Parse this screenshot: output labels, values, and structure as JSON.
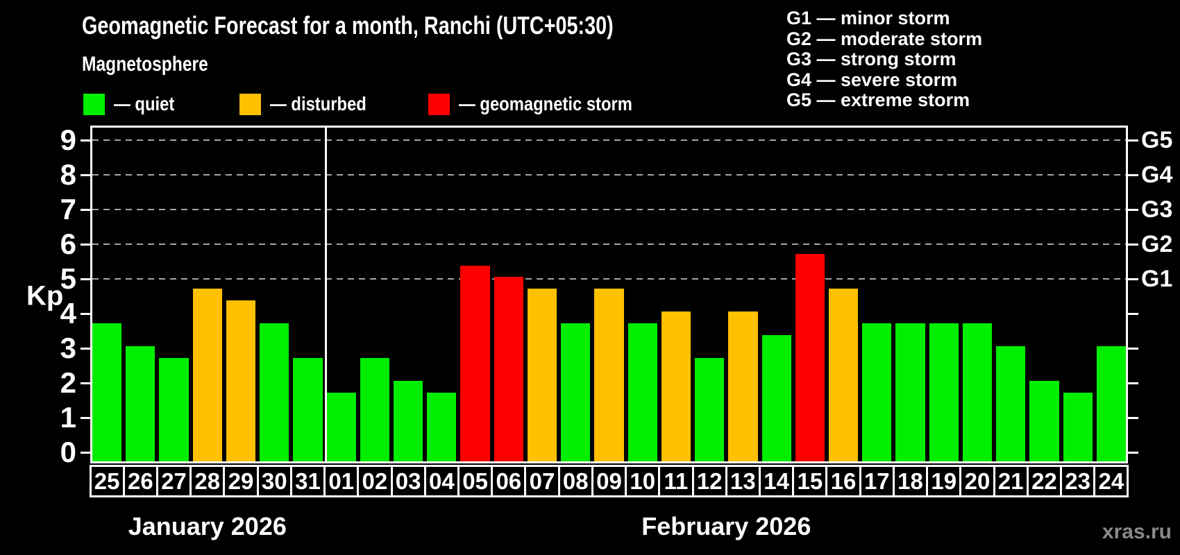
{
  "header": {
    "title": "Geomagnetic Forecast for a month, Ranchi (UTC+05:30)",
    "subtitle": "Magnetosphere",
    "legend": [
      {
        "level": "quiet",
        "label": "— quiet"
      },
      {
        "level": "disturbed",
        "label": "— disturbed"
      },
      {
        "level": "storm",
        "label": "— geomagnetic storm"
      }
    ],
    "g_scale_legend": [
      "G1 — minor storm",
      "G2 — moderate storm",
      "G3 — strong storm",
      "G4 — severe storm",
      "G5 — extreme storm"
    ]
  },
  "chart_data": {
    "type": "bar",
    "title": "Geomagnetic Forecast for a month, Ranchi (UTC+05:30)",
    "xlabel": "",
    "ylabel": "Kp",
    "ylim": [
      0,
      9
    ],
    "yticks": [
      0,
      1,
      2,
      3,
      4,
      5,
      6,
      7,
      8,
      9
    ],
    "gridlines_at": [
      5,
      6,
      7,
      8,
      9
    ],
    "grid": "dashed horizontal at Kp 5-9",
    "legend_position": "top-left",
    "palette": {
      "quiet": "#00ee00",
      "disturbed": "#ffc000",
      "storm": "#ff0000"
    },
    "right_axis": [
      {
        "kp": 5,
        "label": "G1"
      },
      {
        "kp": 6,
        "label": "G2"
      },
      {
        "kp": 7,
        "label": "G3"
      },
      {
        "kp": 8,
        "label": "G4"
      },
      {
        "kp": 9,
        "label": "G5"
      }
    ],
    "months": [
      {
        "label": "January 2026",
        "days": [
          "25",
          "26",
          "27",
          "28",
          "29",
          "30",
          "31"
        ],
        "values": [
          3.67,
          3.0,
          2.67,
          4.67,
          4.33,
          3.67,
          2.67
        ],
        "levels": [
          "quiet",
          "quiet",
          "quiet",
          "disturbed",
          "disturbed",
          "quiet",
          "quiet"
        ]
      },
      {
        "label": "February 2026",
        "days": [
          "01",
          "02",
          "03",
          "04",
          "05",
          "06",
          "07",
          "08",
          "09",
          "10",
          "11",
          "12",
          "13",
          "14",
          "15",
          "16",
          "17",
          "18",
          "19",
          "20",
          "21",
          "22",
          "23",
          "24"
        ],
        "values": [
          1.67,
          2.67,
          2.0,
          1.67,
          5.33,
          5.0,
          4.67,
          3.67,
          4.67,
          3.67,
          4.0,
          2.67,
          4.0,
          3.33,
          5.67,
          4.67,
          3.67,
          3.67,
          3.67,
          3.67,
          3.0,
          2.0,
          1.67,
          3.0
        ],
        "levels": [
          "quiet",
          "quiet",
          "quiet",
          "quiet",
          "storm",
          "storm",
          "disturbed",
          "quiet",
          "disturbed",
          "quiet",
          "disturbed",
          "quiet",
          "disturbed",
          "quiet",
          "storm",
          "disturbed",
          "quiet",
          "quiet",
          "quiet",
          "quiet",
          "quiet",
          "quiet",
          "quiet",
          "quiet"
        ]
      }
    ]
  },
  "watermark": "xras.ru"
}
